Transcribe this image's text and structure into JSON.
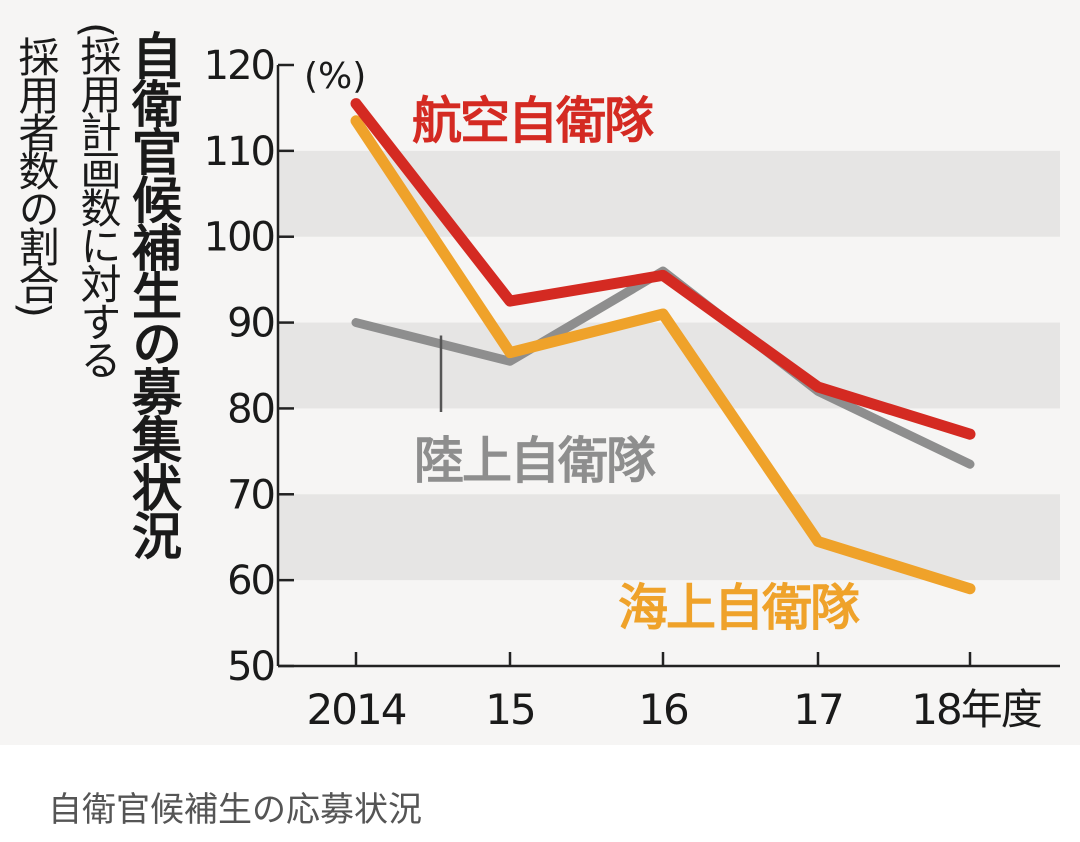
{
  "chart_data": {
    "type": "line",
    "title": "自衛官候補生の募集状況",
    "subtitle_lines": [
      "(採用計画数に対する",
      "採用者数の割合)"
    ],
    "unit_label": "(%)",
    "categories": [
      "2014",
      "15",
      "16",
      "17",
      "18年度"
    ],
    "ylim": [
      50,
      120
    ],
    "yticks": [
      50,
      60,
      70,
      80,
      90,
      100,
      110,
      120
    ],
    "grid_bands": [
      [
        60,
        70
      ],
      [
        80,
        90
      ],
      [
        100,
        110
      ]
    ],
    "series": [
      {
        "name": "航空自衛隊",
        "color": "#d42a22",
        "values": [
          115.5,
          92.5,
          95.5,
          82.5,
          77
        ]
      },
      {
        "name": "陸上自衛隊",
        "color": "#8e8e8e",
        "values": [
          90,
          85.5,
          96,
          82,
          73.5
        ]
      },
      {
        "name": "海上自衛隊",
        "color": "#efa22a",
        "values": [
          113.5,
          86.5,
          91,
          64.5,
          59
        ]
      }
    ]
  },
  "caption": "自衛官候補生の応募状況"
}
